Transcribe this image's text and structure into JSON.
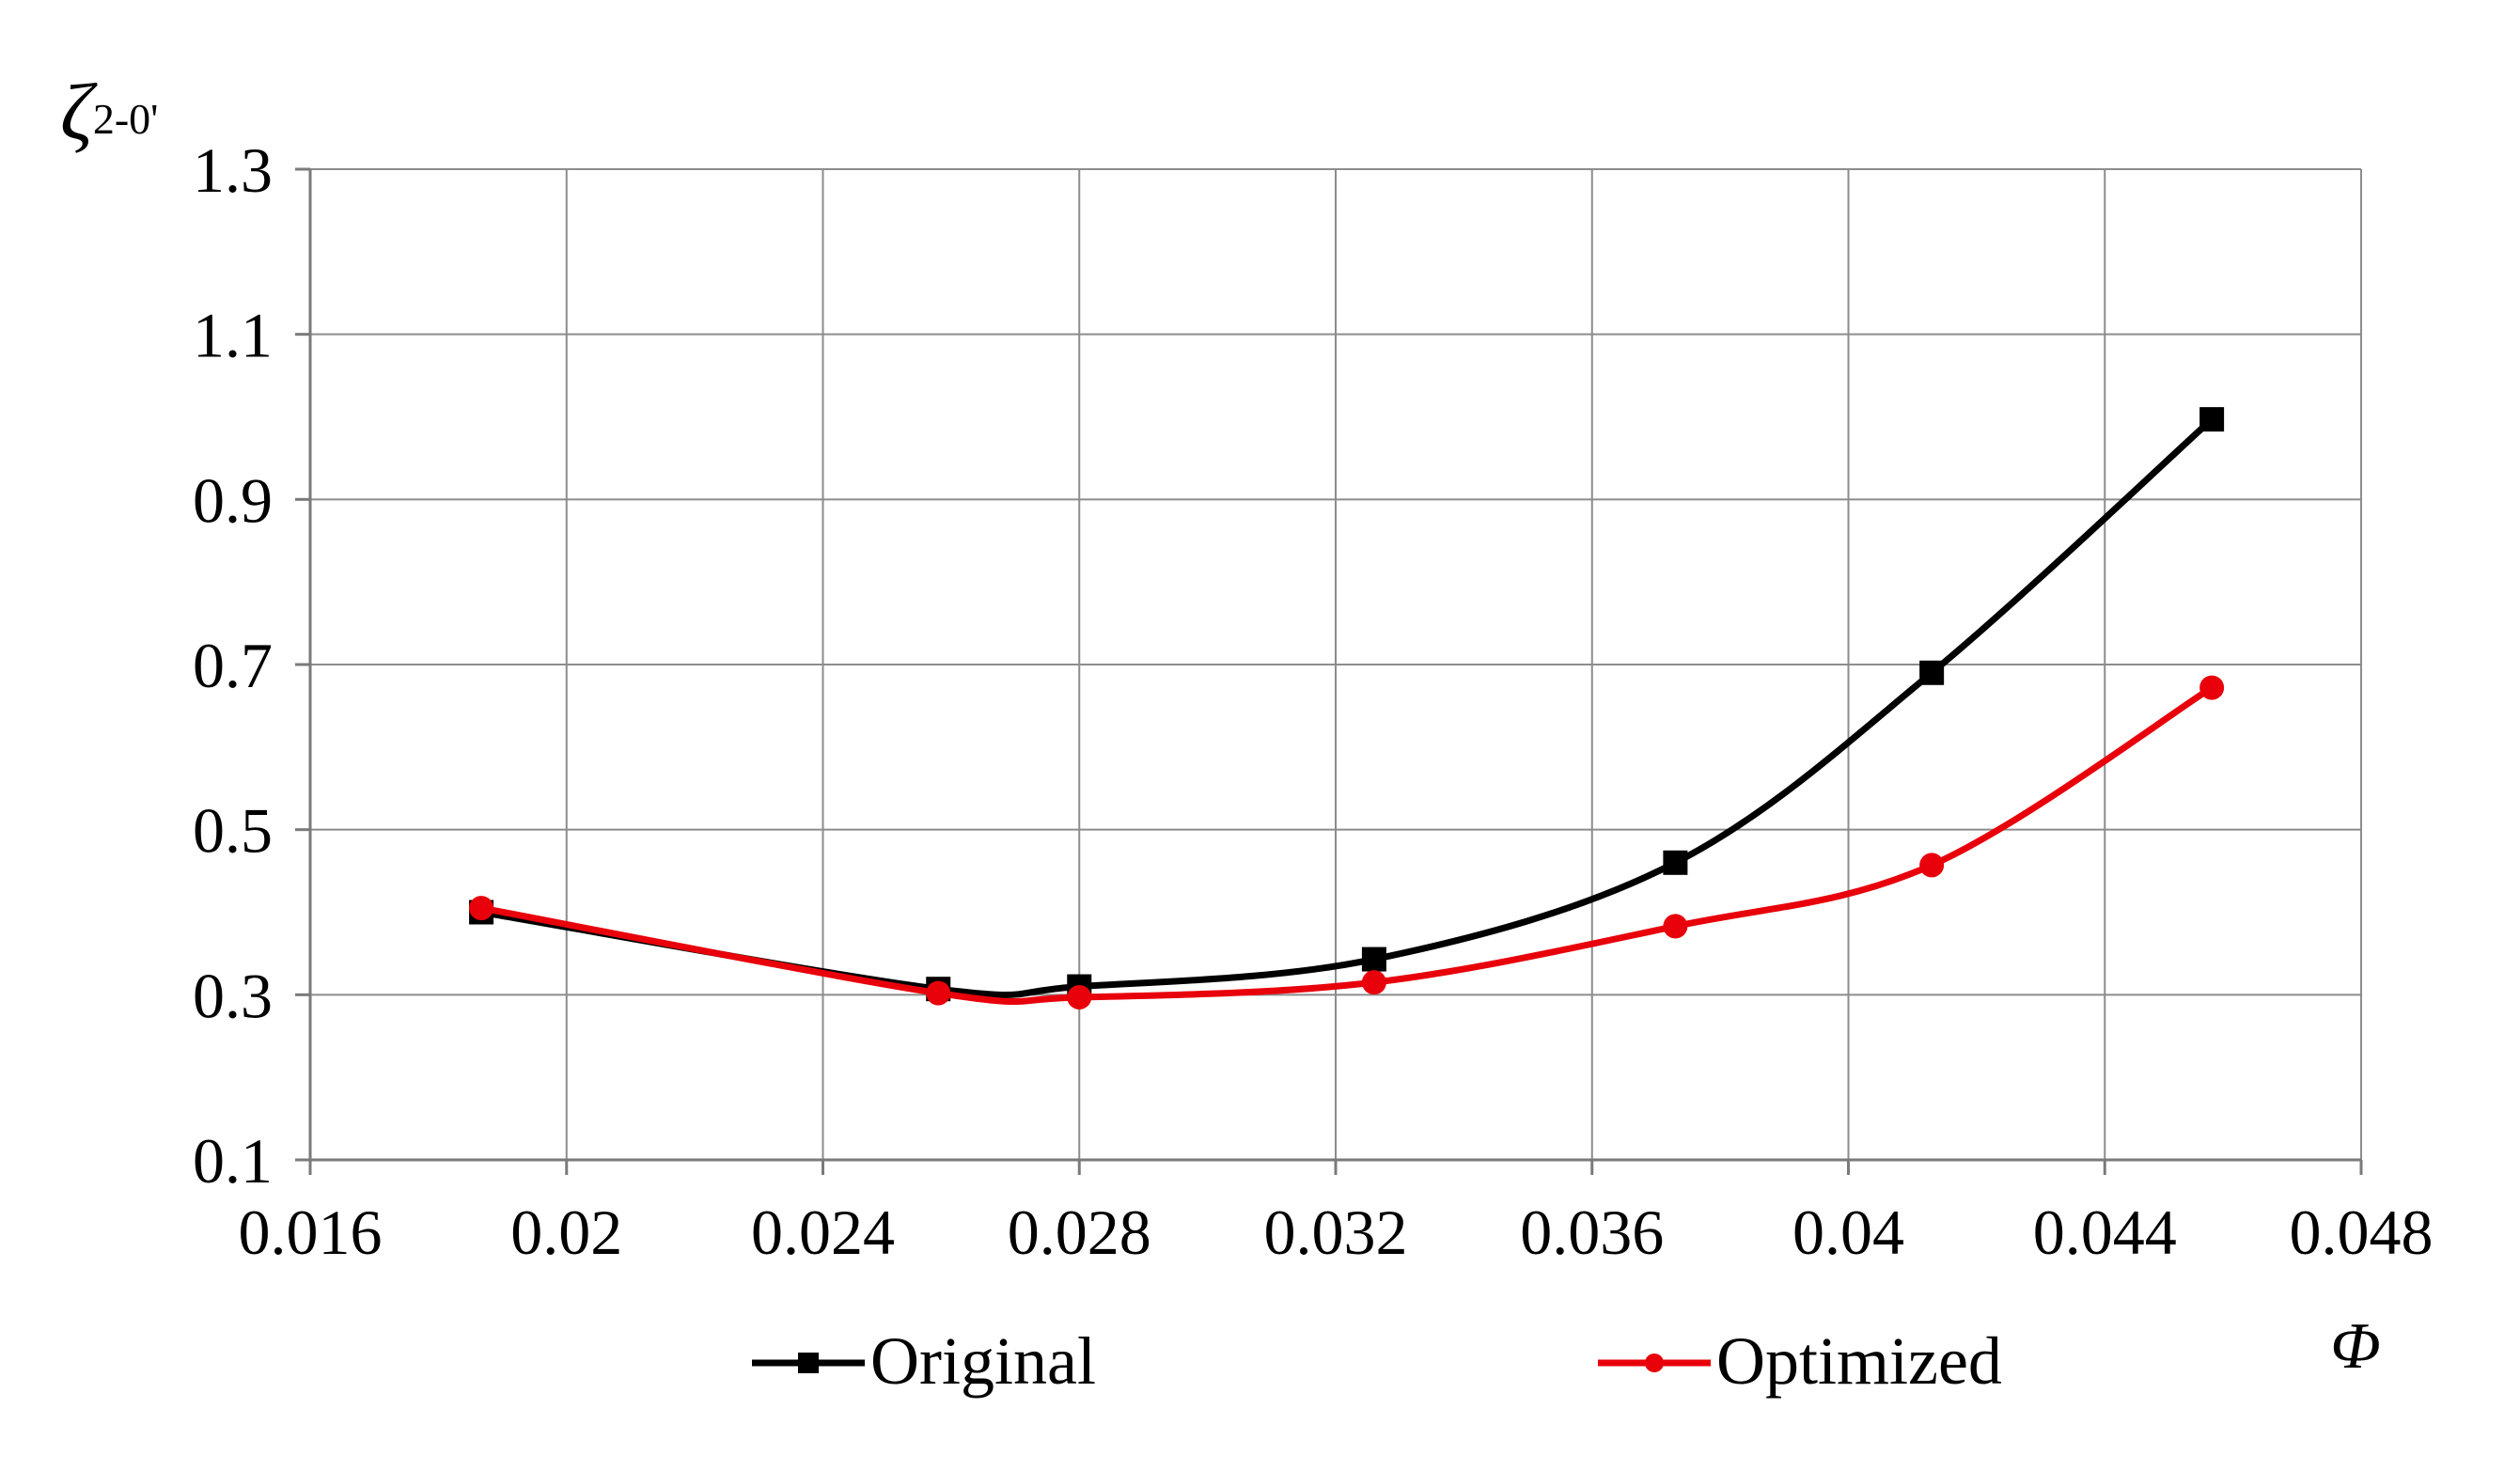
{
  "chart_data": {
    "type": "line",
    "title": "",
    "xlabel": "Φ",
    "ylabel_main": "ζ",
    "ylabel_sub": "2-0'",
    "xlim": [
      0.016,
      0.048
    ],
    "ylim": [
      0.1,
      1.3
    ],
    "xticks": [
      {
        "value": 0.016,
        "label": "0.016"
      },
      {
        "value": 0.02,
        "label": "0.02"
      },
      {
        "value": 0.024,
        "label": "0.024"
      },
      {
        "value": 0.028,
        "label": "0.028"
      },
      {
        "value": 0.032,
        "label": "0.032"
      },
      {
        "value": 0.036,
        "label": "0.036"
      },
      {
        "value": 0.04,
        "label": "0.04"
      },
      {
        "value": 0.044,
        "label": "0.044"
      },
      {
        "value": 0.048,
        "label": "0.048"
      }
    ],
    "yticks": [
      {
        "value": 0.1,
        "label": "0.1"
      },
      {
        "value": 0.3,
        "label": "0.3"
      },
      {
        "value": 0.5,
        "label": "0.5"
      },
      {
        "value": 0.7,
        "label": "0.7"
      },
      {
        "value": 0.9,
        "label": "0.9"
      },
      {
        "value": 1.1,
        "label": "1.1"
      },
      {
        "value": 1.3,
        "label": "1.3"
      }
    ],
    "grid": true,
    "legend_position": "bottom",
    "series": [
      {
        "name": "Original",
        "color": "#000000",
        "marker": "square",
        "x": [
          0.01867,
          0.0258,
          0.028,
          0.0326,
          0.0373,
          0.0413,
          0.04567
        ],
        "y": [
          0.4,
          0.307,
          0.31,
          0.343,
          0.46,
          0.69,
          0.997
        ]
      },
      {
        "name": "Optimized",
        "color": "#e8000b",
        "marker": "circle",
        "x": [
          0.01867,
          0.0258,
          0.028,
          0.0326,
          0.0373,
          0.0413,
          0.04567
        ],
        "y": [
          0.405,
          0.302,
          0.297,
          0.315,
          0.383,
          0.457,
          0.672
        ]
      }
    ]
  }
}
